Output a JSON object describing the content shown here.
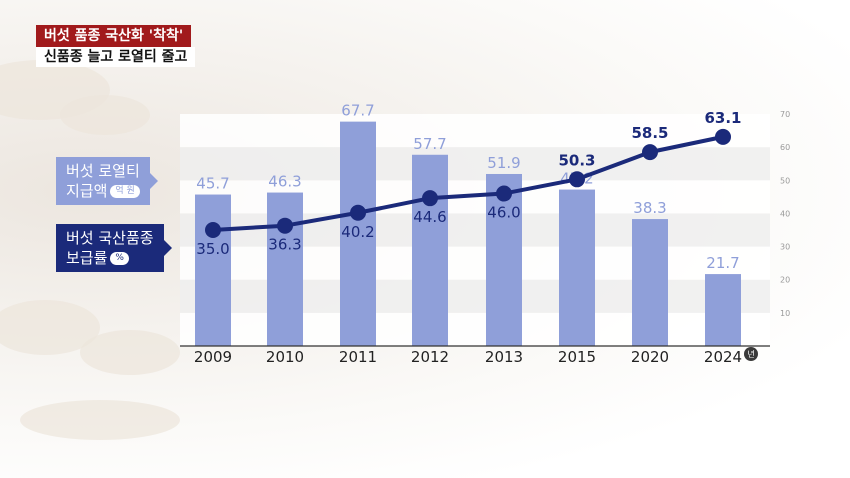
{
  "headline": {
    "main": "버섯 품종 국산화 '착착'",
    "sub": "신품종 늘고 로열티 줄고"
  },
  "legend": {
    "royalty_line1": "버섯 로열티",
    "royalty_line2": "지급액",
    "royalty_unit": "억 원",
    "supply_line1": "버섯 국산품종",
    "supply_line2": "보급률",
    "supply_unit": "%"
  },
  "colors": {
    "bar": "#8f9fd9",
    "line": "#1b2a7a",
    "headline_red": "#a11a1c"
  },
  "chart_data": {
    "type": "bar+line",
    "categories": [
      "2009",
      "2010",
      "2011",
      "2012",
      "2013",
      "2015",
      "2020",
      "2024"
    ],
    "x_unit": "년",
    "series": [
      {
        "name": "버섯 로열티 지급액",
        "kind": "bar",
        "unit": "억 원",
        "values": [
          45.7,
          46.3,
          67.7,
          57.7,
          51.9,
          47.2,
          38.3,
          21.7
        ]
      },
      {
        "name": "버섯 국산품종 보급률",
        "kind": "line",
        "unit": "%",
        "values": [
          35.0,
          36.3,
          40.2,
          44.6,
          46.0,
          50.3,
          58.5,
          63.1
        ]
      }
    ],
    "y_ticks": [
      10,
      20,
      30,
      40,
      50,
      60,
      70
    ],
    "ylim": [
      0,
      70
    ],
    "grid": "horizontal bands"
  }
}
